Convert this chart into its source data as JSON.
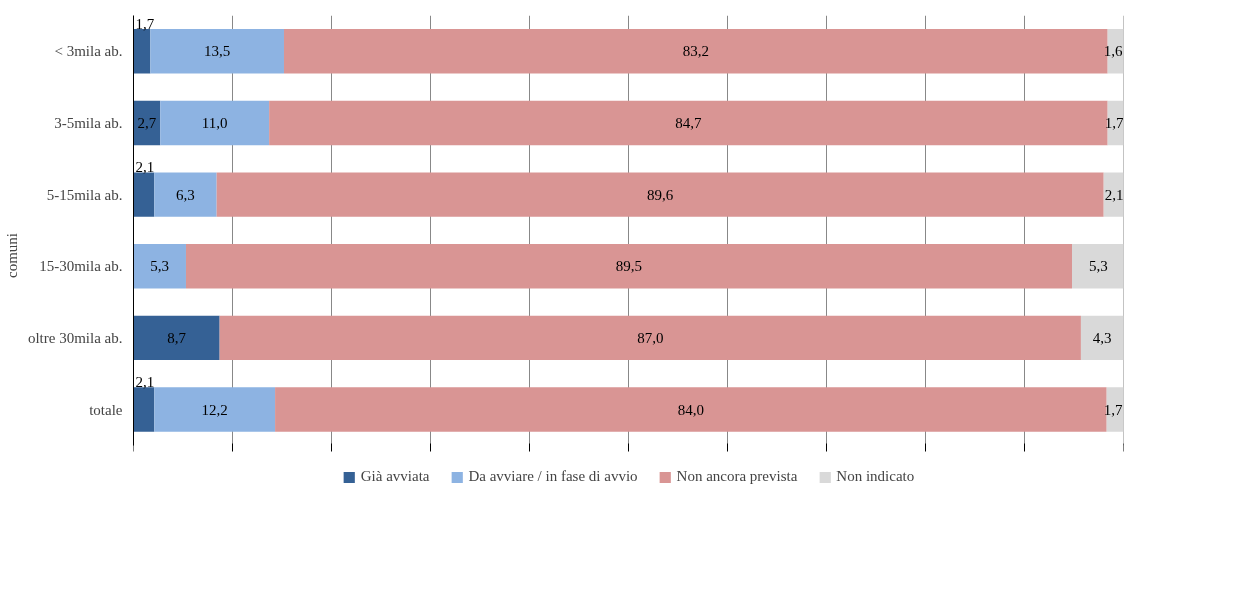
{
  "chart_data": {
    "type": "bar",
    "orientation": "horizontal",
    "stacked": true,
    "ylabel": "comuni",
    "categories": [
      "< 3mila ab.",
      "3-5mila ab.",
      "5-15mila ab.",
      "15-30mila ab.",
      "oltre 30mila ab.",
      "totale"
    ],
    "series": [
      {
        "name": "Già avviata",
        "color": "#356195",
        "values": [
          1.7,
          2.7,
          2.1,
          null,
          8.7,
          2.1
        ],
        "value_labels": [
          "1,7",
          "2,7",
          "2,1",
          null,
          "8,7",
          "2,1"
        ]
      },
      {
        "name": "Da avviare / in fase di avvio",
        "color": "#8db3e2",
        "values": [
          13.5,
          11.0,
          6.3,
          5.3,
          null,
          12.2
        ],
        "value_labels": [
          "13,5",
          "11,0",
          "6,3",
          "5,3",
          null,
          "12,2"
        ]
      },
      {
        "name": "Non ancora prevista",
        "color": "#d99594",
        "values": [
          83.2,
          84.7,
          89.6,
          89.5,
          87.0,
          84.0
        ],
        "value_labels": [
          "83,2",
          "84,7",
          "89,6",
          "89,5",
          "87,0",
          "84,0"
        ]
      },
      {
        "name": "Non indicato",
        "color": "#d9d9d9",
        "values": [
          1.6,
          1.7,
          2.1,
          5.3,
          4.3,
          1.7
        ],
        "value_labels": [
          "1,6",
          "1,7",
          "2,1",
          "5,3",
          "4,3",
          "1,7"
        ]
      }
    ],
    "xlim": [
      0,
      100
    ],
    "xticks": [
      {
        "value": 0,
        "label": null
      },
      {
        "value": 10,
        "label": null
      },
      {
        "value": 20,
        "label": null
      },
      {
        "value": 30,
        "label": null
      },
      {
        "value": 40,
        "label": null
      },
      {
        "value": 50,
        "label": null
      },
      {
        "value": 60,
        "label": null
      },
      {
        "value": 70,
        "label": null
      },
      {
        "value": 80,
        "label": null
      },
      {
        "value": 90,
        "label": null
      },
      {
        "value": 100,
        "label": null
      }
    ],
    "grid": "x",
    "legend": "bottom",
    "tick_labels": "y"
  }
}
